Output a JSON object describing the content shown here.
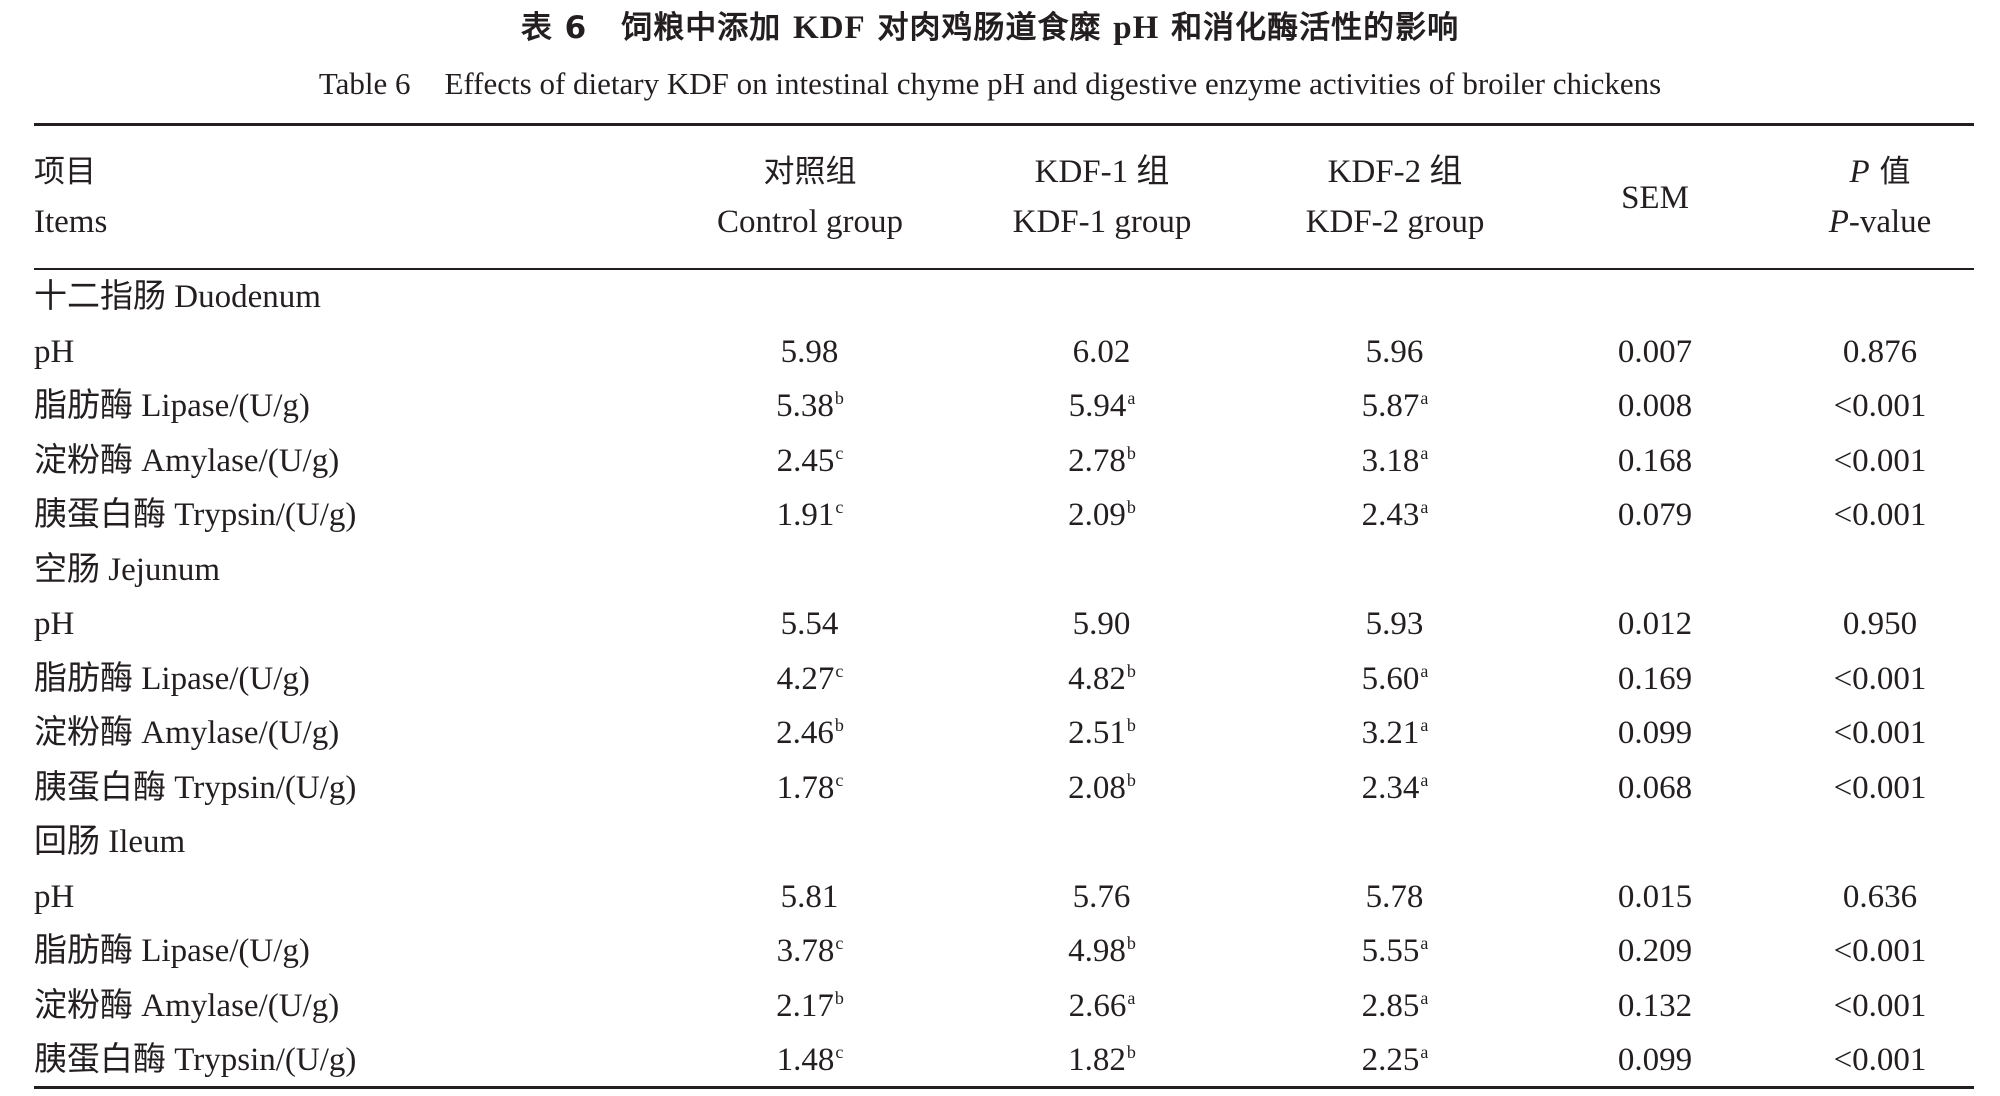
{
  "title_cn": {
    "num": "表 6",
    "text_a": "饲粮中添加 ",
    "kdf": "KDF",
    "text_b": " 对肉鸡肠道食糜 ",
    "ph": "pH",
    "text_c": " 和消化酶活性的影响"
  },
  "title_en": {
    "num": "Table 6",
    "text": "Effects of dietary KDF on intestinal chyme pH and digestive enzyme activities of broiler chickens"
  },
  "headers": {
    "items_cn": "项目",
    "items_en": "Items",
    "control_cn": "对照组",
    "control_en": "Control group",
    "kdf1_cn": "KDF-1 组",
    "kdf1_en": "KDF-1 group",
    "kdf2_cn": "KDF-2 组",
    "kdf2_en": "KDF-2 group",
    "sem": "SEM",
    "p_cn_prefix": "P",
    "p_cn_suffix": " 值",
    "p_en_prefix": "P",
    "p_en_suffix": "-value"
  },
  "rows": [
    {
      "type": "section",
      "label": "十二指肠 Duodenum"
    },
    {
      "label": "pH",
      "ctl": "5.98",
      "ctl_s": "",
      "k1": "6.02",
      "k1_s": "",
      "k2": "5.96",
      "k2_s": "",
      "sem": "0.007",
      "p": "0.876"
    },
    {
      "label": "脂肪酶 Lipase/(U/g)",
      "ctl": "5.38",
      "ctl_s": "b",
      "k1": "5.94",
      "k1_s": "a",
      "k2": "5.87",
      "k2_s": "a",
      "sem": "0.008",
      "p": "<0.001"
    },
    {
      "label": "淀粉酶 Amylase/(U/g)",
      "ctl": "2.45",
      "ctl_s": "c",
      "k1": "2.78",
      "k1_s": "b",
      "k2": "3.18",
      "k2_s": "a",
      "sem": "0.168",
      "p": "<0.001"
    },
    {
      "label": "胰蛋白酶 Trypsin/(U/g)",
      "ctl": "1.91",
      "ctl_s": "c",
      "k1": "2.09",
      "k1_s": "b",
      "k2": "2.43",
      "k2_s": "a",
      "sem": "0.079",
      "p": "<0.001"
    },
    {
      "type": "section",
      "label": "空肠 Jejunum"
    },
    {
      "label": "pH",
      "ctl": "5.54",
      "ctl_s": "",
      "k1": "5.90",
      "k1_s": "",
      "k2": "5.93",
      "k2_s": "",
      "sem": "0.012",
      "p": "0.950"
    },
    {
      "label": "脂肪酶 Lipase/(U/g)",
      "ctl": "4.27",
      "ctl_s": "c",
      "k1": "4.82",
      "k1_s": "b",
      "k2": "5.60",
      "k2_s": "a",
      "sem": "0.169",
      "p": "<0.001"
    },
    {
      "label": "淀粉酶 Amylase/(U/g)",
      "ctl": "2.46",
      "ctl_s": "b",
      "k1": "2.51",
      "k1_s": "b",
      "k2": "3.21",
      "k2_s": "a",
      "sem": "0.099",
      "p": "<0.001"
    },
    {
      "label": "胰蛋白酶 Trypsin/(U/g)",
      "ctl": "1.78",
      "ctl_s": "c",
      "k1": "2.08",
      "k1_s": "b",
      "k2": "2.34",
      "k2_s": "a",
      "sem": "0.068",
      "p": "<0.001"
    },
    {
      "type": "section",
      "label": "回肠 Ileum"
    },
    {
      "label": "pH",
      "ctl": "5.81",
      "ctl_s": "",
      "k1": "5.76",
      "k1_s": "",
      "k2": "5.78",
      "k2_s": "",
      "sem": "0.015",
      "p": "0.636"
    },
    {
      "label": "脂肪酶 Lipase/(U/g)",
      "ctl": "3.78",
      "ctl_s": "c",
      "k1": "4.98",
      "k1_s": "b",
      "k2": "5.55",
      "k2_s": "a",
      "sem": "0.209",
      "p": "<0.001"
    },
    {
      "label": "淀粉酶 Amylase/(U/g)",
      "ctl": "2.17",
      "ctl_s": "b",
      "k1": "2.66",
      "k1_s": "a",
      "k2": "2.85",
      "k2_s": "a",
      "sem": "0.132",
      "p": "<0.001"
    },
    {
      "label": "胰蛋白酶 Trypsin/(U/g)",
      "ctl": "1.48",
      "ctl_s": "c",
      "k1": "1.82",
      "k1_s": "b",
      "k2": "2.25",
      "k2_s": "a",
      "sem": "0.099",
      "p": "<0.001"
    }
  ]
}
